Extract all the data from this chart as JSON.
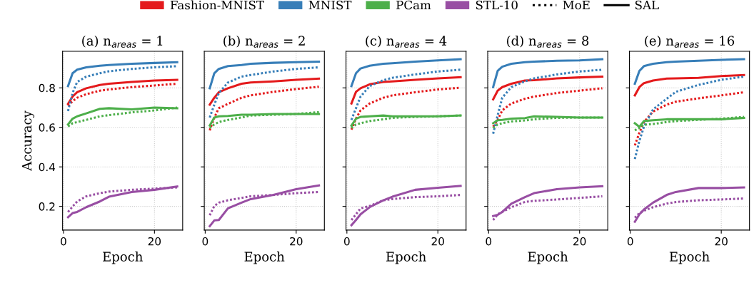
{
  "chart_data": [
    {
      "type": "line",
      "title": "(a) n$_{areas}$ = 1",
      "xlabel": "Epoch",
      "ylabel": "Accuracy",
      "legend": "top",
      "annotations": [
        "MoE",
        "SAL"
      ],
      "grid": true,
      "x": [
        1,
        2,
        3,
        5,
        8,
        10,
        15,
        20,
        25
      ],
      "xlim": [
        -0.2,
        26.2
      ],
      "xticks": [
        0,
        20
      ],
      "ylim": [
        0.08,
        0.985
      ],
      "yticks": [
        0.2,
        0.4,
        0.6,
        0.8
      ],
      "series": [
        {
          "name": "Fashion-MNIST",
          "color": "#e41a1c",
          "line_style": "dotted",
          "values": [
            0.709,
            0.733,
            0.75,
            0.768,
            0.786,
            0.792,
            0.804,
            0.812,
            0.821
          ]
        },
        {
          "color": "#e41a1c",
          "line_style": "solid",
          "values": [
            0.719,
            0.756,
            0.778,
            0.798,
            0.815,
            0.821,
            0.83,
            0.837,
            0.841
          ]
        },
        {
          "name": "MNIST",
          "color": "#377eb8",
          "line_style": "dotted",
          "values": [
            0.683,
            0.774,
            0.83,
            0.857,
            0.874,
            0.884,
            0.896,
            0.904,
            0.91
          ]
        },
        {
          "color": "#377eb8",
          "line_style": "solid",
          "values": [
            0.809,
            0.874,
            0.892,
            0.904,
            0.912,
            0.916,
            0.922,
            0.926,
            0.93
          ]
        },
        {
          "name": "PCam",
          "color": "#4daf4a",
          "line_style": "dotted",
          "values": [
            0.605,
            0.621,
            0.627,
            0.638,
            0.656,
            0.662,
            0.676,
            0.686,
            0.7
          ]
        },
        {
          "color": "#4daf4a",
          "line_style": "solid",
          "values": [
            0.615,
            0.644,
            0.656,
            0.671,
            0.694,
            0.697,
            0.691,
            0.7,
            0.697
          ]
        },
        {
          "name": "STL-10",
          "color": "#984ea3",
          "line_style": "dotted",
          "values": [
            0.172,
            0.199,
            0.225,
            0.251,
            0.267,
            0.275,
            0.284,
            0.29,
            0.296
          ]
        },
        {
          "color": "#984ea3",
          "line_style": "solid",
          "values": [
            0.145,
            0.166,
            0.172,
            0.196,
            0.225,
            0.249,
            0.273,
            0.284,
            0.301
          ]
        }
      ]
    },
    {
      "type": "line",
      "title": "(b) n$_{areas}$ = 2",
      "xlabel": "Epoch",
      "tick_labels": "x",
      "grid": true,
      "x": [
        1,
        2,
        3,
        5,
        8,
        10,
        15,
        20,
        25
      ],
      "xlim": [
        -0.2,
        26.2
      ],
      "xticks": [
        0,
        20
      ],
      "ylim": [
        0.08,
        0.985
      ],
      "yticks": [
        0.2,
        0.4,
        0.6,
        0.8
      ],
      "series": [
        {
          "color": "#e41a1c",
          "line_style": "dotted",
          "values": [
            0.585,
            0.65,
            0.697,
            0.719,
            0.75,
            0.762,
            0.78,
            0.794,
            0.806
          ]
        },
        {
          "color": "#e41a1c",
          "line_style": "solid",
          "values": [
            0.715,
            0.75,
            0.778,
            0.798,
            0.821,
            0.827,
            0.833,
            0.841,
            0.847
          ]
        },
        {
          "color": "#377eb8",
          "line_style": "dotted",
          "values": [
            0.65,
            0.715,
            0.774,
            0.827,
            0.857,
            0.865,
            0.883,
            0.896,
            0.904
          ]
        },
        {
          "color": "#377eb8",
          "line_style": "solid",
          "values": [
            0.798,
            0.874,
            0.896,
            0.91,
            0.916,
            0.922,
            0.927,
            0.93,
            0.933
          ]
        },
        {
          "color": "#4daf4a",
          "line_style": "dotted",
          "values": [
            0.597,
            0.615,
            0.627,
            0.638,
            0.65,
            0.66,
            0.664,
            0.668,
            0.677
          ]
        },
        {
          "color": "#4daf4a",
          "line_style": "solid",
          "values": [
            0.609,
            0.65,
            0.656,
            0.658,
            0.664,
            0.664,
            0.668,
            0.668,
            0.668
          ]
        },
        {
          "color": "#984ea3",
          "line_style": "dotted",
          "values": [
            0.155,
            0.202,
            0.219,
            0.231,
            0.243,
            0.251,
            0.258,
            0.267,
            0.273
          ]
        },
        {
          "color": "#984ea3",
          "line_style": "solid",
          "values": [
            0.1,
            0.129,
            0.131,
            0.19,
            0.219,
            0.237,
            0.258,
            0.287,
            0.306
          ]
        }
      ]
    },
    {
      "type": "line",
      "title": "(c) n$_{areas}$ = 4",
      "xlabel": "Epoch",
      "tick_labels": "x",
      "grid": true,
      "x": [
        1,
        2,
        3,
        5,
        8,
        10,
        15,
        20,
        25
      ],
      "xlim": [
        -0.2,
        26.2
      ],
      "xticks": [
        0,
        20
      ],
      "ylim": [
        0.08,
        0.985
      ],
      "yticks": [
        0.2,
        0.4,
        0.6,
        0.8
      ],
      "series": [
        {
          "color": "#e41a1c",
          "line_style": "dotted",
          "values": [
            0.589,
            0.644,
            0.686,
            0.721,
            0.75,
            0.762,
            0.778,
            0.792,
            0.801
          ]
        },
        {
          "color": "#e41a1c",
          "line_style": "solid",
          "values": [
            0.721,
            0.78,
            0.798,
            0.818,
            0.83,
            0.833,
            0.841,
            0.848,
            0.854
          ]
        },
        {
          "color": "#377eb8",
          "line_style": "dotted",
          "values": [
            0.638,
            0.697,
            0.756,
            0.809,
            0.839,
            0.851,
            0.868,
            0.883,
            0.892
          ]
        },
        {
          "color": "#377eb8",
          "line_style": "solid",
          "values": [
            0.809,
            0.874,
            0.898,
            0.912,
            0.922,
            0.925,
            0.933,
            0.939,
            0.945
          ]
        },
        {
          "color": "#4daf4a",
          "line_style": "dotted",
          "values": [
            0.597,
            0.615,
            0.621,
            0.632,
            0.641,
            0.648,
            0.653,
            0.656,
            0.66
          ]
        },
        {
          "color": "#4daf4a",
          "line_style": "solid",
          "values": [
            0.609,
            0.644,
            0.653,
            0.656,
            0.66,
            0.656,
            0.656,
            0.656,
            0.66
          ]
        },
        {
          "color": "#984ea3",
          "line_style": "dotted",
          "values": [
            0.131,
            0.16,
            0.19,
            0.202,
            0.231,
            0.237,
            0.247,
            0.251,
            0.258
          ]
        },
        {
          "color": "#984ea3",
          "line_style": "solid",
          "values": [
            0.105,
            0.131,
            0.16,
            0.196,
            0.231,
            0.249,
            0.284,
            0.294,
            0.304
          ]
        }
      ]
    },
    {
      "type": "line",
      "title": "(d) n$_{areas}$ = 8",
      "xlabel": "Epoch",
      "tick_labels": "x",
      "grid": true,
      "x": [
        1,
        2,
        3,
        5,
        8,
        10,
        15,
        20,
        25
      ],
      "xlim": [
        -0.2,
        26.2
      ],
      "xticks": [
        0,
        20
      ],
      "ylim": [
        0.08,
        0.985
      ],
      "yticks": [
        0.2,
        0.4,
        0.6,
        0.8
      ],
      "series": [
        {
          "color": "#e41a1c",
          "line_style": "dotted",
          "values": [
            0.603,
            0.638,
            0.686,
            0.721,
            0.745,
            0.756,
            0.774,
            0.786,
            0.798
          ]
        },
        {
          "color": "#e41a1c",
          "line_style": "solid",
          "values": [
            0.742,
            0.786,
            0.804,
            0.821,
            0.837,
            0.839,
            0.848,
            0.853,
            0.857
          ]
        },
        {
          "color": "#377eb8",
          "line_style": "dotted",
          "values": [
            0.568,
            0.662,
            0.75,
            0.804,
            0.833,
            0.848,
            0.868,
            0.883,
            0.892
          ]
        },
        {
          "color": "#377eb8",
          "line_style": "solid",
          "values": [
            0.804,
            0.886,
            0.907,
            0.922,
            0.93,
            0.933,
            0.937,
            0.939,
            0.945
          ]
        },
        {
          "color": "#4daf4a",
          "line_style": "dotted",
          "values": [
            0.597,
            0.615,
            0.621,
            0.63,
            0.635,
            0.641,
            0.648,
            0.65,
            0.65
          ]
        },
        {
          "color": "#4daf4a",
          "line_style": "solid",
          "values": [
            0.621,
            0.636,
            0.638,
            0.644,
            0.647,
            0.656,
            0.653,
            0.65,
            0.65
          ]
        },
        {
          "color": "#984ea3",
          "line_style": "dotted",
          "values": [
            0.131,
            0.16,
            0.172,
            0.196,
            0.223,
            0.228,
            0.235,
            0.243,
            0.251
          ]
        },
        {
          "color": "#984ea3",
          "line_style": "solid",
          "values": [
            0.151,
            0.157,
            0.172,
            0.214,
            0.247,
            0.267,
            0.287,
            0.296,
            0.302
          ]
        }
      ]
    },
    {
      "type": "line",
      "title": "(e) n$_{areas}$ = 16",
      "xlabel": "Epoch",
      "tick_labels": "x",
      "grid": true,
      "x": [
        1,
        2,
        3,
        5,
        8,
        10,
        15,
        20,
        25
      ],
      "xlim": [
        -0.2,
        26.2
      ],
      "xticks": [
        0,
        20
      ],
      "ylim": [
        0.08,
        0.985
      ],
      "yticks": [
        0.2,
        0.4,
        0.6,
        0.8
      ],
      "series": [
        {
          "color": "#e41a1c",
          "line_style": "dotted",
          "values": [
            0.509,
            0.573,
            0.627,
            0.68,
            0.715,
            0.73,
            0.747,
            0.762,
            0.778
          ]
        },
        {
          "color": "#e41a1c",
          "line_style": "solid",
          "values": [
            0.762,
            0.804,
            0.824,
            0.837,
            0.847,
            0.848,
            0.851,
            0.86,
            0.865
          ]
        },
        {
          "color": "#377eb8",
          "line_style": "dotted",
          "values": [
            0.44,
            0.532,
            0.603,
            0.691,
            0.745,
            0.78,
            0.815,
            0.841,
            0.857
          ]
        },
        {
          "color": "#377eb8",
          "line_style": "solid",
          "values": [
            0.821,
            0.886,
            0.91,
            0.922,
            0.93,
            0.933,
            0.937,
            0.942,
            0.945
          ]
        },
        {
          "color": "#4daf4a",
          "line_style": "dotted",
          "values": [
            0.585,
            0.597,
            0.613,
            0.617,
            0.627,
            0.632,
            0.638,
            0.644,
            0.653
          ]
        },
        {
          "color": "#4daf4a",
          "line_style": "solid",
          "values": [
            0.621,
            0.603,
            0.632,
            0.636,
            0.641,
            0.641,
            0.641,
            0.641,
            0.648
          ]
        },
        {
          "color": "#984ea3",
          "line_style": "dotted",
          "values": [
            0.143,
            0.166,
            0.178,
            0.196,
            0.214,
            0.222,
            0.231,
            0.235,
            0.24
          ]
        },
        {
          "color": "#984ea3",
          "line_style": "solid",
          "values": [
            0.122,
            0.16,
            0.184,
            0.219,
            0.258,
            0.273,
            0.293,
            0.293,
            0.296
          ]
        }
      ]
    }
  ]
}
